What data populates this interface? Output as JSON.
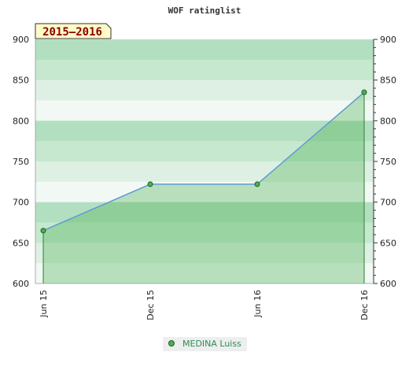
{
  "title": "WOF ratinglist",
  "season_label": "2015–2016",
  "colors": {
    "line": "#5b9bd5",
    "area": "#4caf50",
    "marker_fill": "#4caf50",
    "marker_stroke": "#1b5e20",
    "band_dark": "#b3dfc1",
    "band_light": "#ddf0e3",
    "label_box": "#fffbc8",
    "legend_text": "#2e8b57"
  },
  "chart_data": {
    "type": "area",
    "title": "WOF ratinglist",
    "categories": [
      "Jun 15",
      "Dec 15",
      "Jun 16",
      "Dec 16"
    ],
    "series": [
      {
        "name": "MEDINA Luiss",
        "values": [
          665,
          722,
          722,
          835
        ]
      }
    ],
    "ylim": [
      600,
      900
    ],
    "yticks": [
      600,
      650,
      700,
      750,
      800,
      850,
      900
    ],
    "grid": true,
    "legend_position": "bottom-center"
  }
}
